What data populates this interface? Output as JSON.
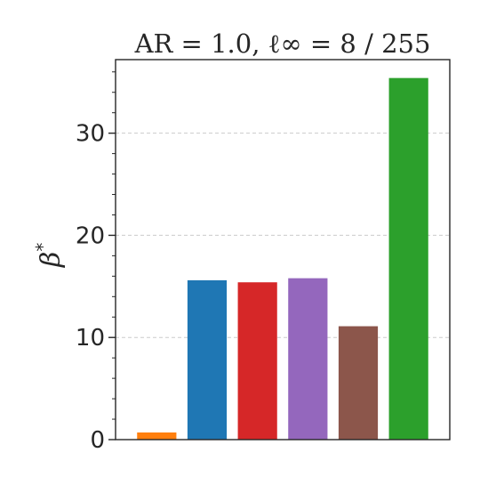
{
  "chart_data": {
    "type": "bar",
    "title": "AR = 1.0, ℓ∞ = 8 / 255",
    "ylabel": "β",
    "ylabel_superscript": "*",
    "xlabel": "",
    "ylim": [
      0,
      37.2
    ],
    "yticks": [
      0,
      10,
      20,
      30
    ],
    "grid": "y-dashed",
    "bars": [
      {
        "value": 0.7,
        "color": "#ff7f0e"
      },
      {
        "value": 15.6,
        "color": "#1f77b4"
      },
      {
        "value": 15.4,
        "color": "#d62728"
      },
      {
        "value": 15.8,
        "color": "#9467bd"
      },
      {
        "value": 11.1,
        "color": "#8c564b"
      },
      {
        "value": 35.4,
        "color": "#2ca02c"
      }
    ]
  }
}
